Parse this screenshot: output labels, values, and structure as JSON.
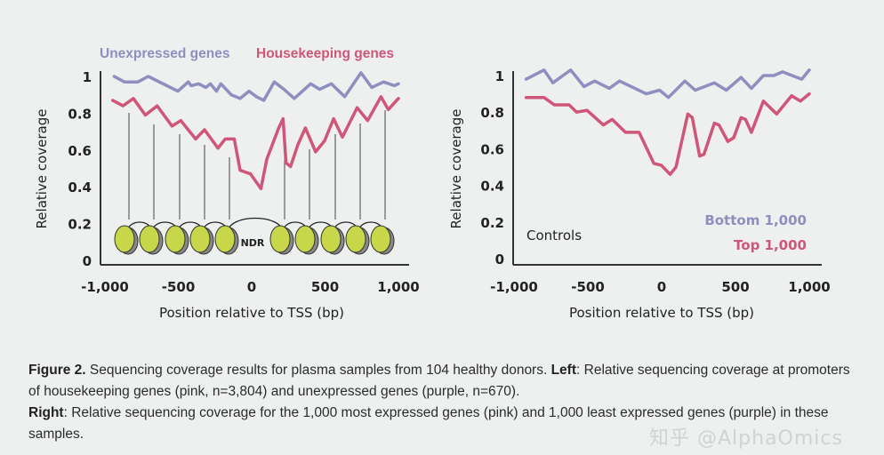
{
  "chart_data": [
    {
      "type": "line",
      "panel": "left",
      "xlabel": "Position relative to TSS (bp)",
      "ylabel": "Relative coverage",
      "xlim": [
        -1000,
        1000
      ],
      "ylim": [
        0,
        1
      ],
      "xticks": [
        "-1,000",
        "-500",
        "0",
        "500",
        "1,000"
      ],
      "xtick_values": [
        -1000,
        -500,
        0,
        500,
        1000
      ],
      "yticks": [
        "0",
        "0.2",
        "0.4",
        "0.6",
        "0.8",
        "1"
      ],
      "ytick_values": [
        0,
        0.2,
        0.4,
        0.6,
        0.8,
        1
      ],
      "grid": false,
      "legend_placement": "top",
      "annotation": "NDR",
      "nucleosome_color": "#c8d64a",
      "series": [
        {
          "name": "Unexpressed genes",
          "color": "#8e8fbf",
          "x": [
            -937,
            -867,
            -776,
            -705,
            -503,
            -432,
            -412,
            -362,
            -312,
            -281,
            -240,
            -210,
            -139,
            -79,
            -18,
            32,
            83,
            154,
            220,
            290,
            402,
            463,
            543,
            634,
            745,
            818,
            899,
            972,
            1000
          ],
          "y": [
            1.0,
            0.97,
            0.97,
            1.0,
            0.92,
            0.97,
            0.95,
            0.96,
            0.94,
            0.96,
            0.92,
            0.96,
            0.9,
            0.88,
            0.92,
            0.89,
            0.87,
            0.97,
            0.93,
            0.88,
            0.96,
            0.93,
            0.96,
            0.89,
            1.02,
            0.94,
            0.97,
            0.95,
            0.96
          ]
        },
        {
          "name": "Housekeeping genes",
          "color": "#d0557a",
          "x": [
            -947,
            -877,
            -806,
            -725,
            -644,
            -543,
            -483,
            -382,
            -321,
            -230,
            -180,
            -119,
            -79,
            -8,
            63,
            103,
            184,
            214,
            234,
            265,
            315,
            366,
            436,
            497,
            558,
            618,
            719,
            790,
            881,
            931,
            1000
          ],
          "y": [
            0.87,
            0.84,
            0.88,
            0.79,
            0.84,
            0.73,
            0.76,
            0.66,
            0.71,
            0.61,
            0.66,
            0.66,
            0.49,
            0.47,
            0.39,
            0.55,
            0.72,
            0.77,
            0.53,
            0.51,
            0.63,
            0.72,
            0.59,
            0.65,
            0.77,
            0.67,
            0.83,
            0.76,
            0.89,
            0.82,
            0.88
          ]
        }
      ]
    },
    {
      "type": "line",
      "panel": "right",
      "xlabel": "Position relative to TSS (bp)",
      "ylabel": "Relative coverage",
      "xlim": [
        -1000,
        1000
      ],
      "ylim": [
        0,
        1
      ],
      "xticks": [
        "-1,000",
        "-500",
        "0",
        "500",
        "1,000"
      ],
      "xtick_values": [
        -1000,
        -500,
        0,
        500,
        1000
      ],
      "yticks": [
        "0",
        "0.2",
        "0.4",
        "0.6",
        "0.8",
        "1"
      ],
      "ytick_values": [
        0,
        0.2,
        0.4,
        0.6,
        0.8,
        1
      ],
      "grid": false,
      "legend_placement": "bottom-right",
      "annotation": "Controls",
      "series": [
        {
          "name": "Bottom 1,000",
          "color": "#8e8fbf",
          "x": [
            -918,
            -797,
            -737,
            -616,
            -526,
            -454,
            -355,
            -285,
            -104,
            -14,
            46,
            157,
            227,
            357,
            438,
            538,
            608,
            689,
            759,
            819,
            949,
            1000
          ],
          "y": [
            0.98,
            1.03,
            0.96,
            1.03,
            0.94,
            0.97,
            0.93,
            0.97,
            0.9,
            0.92,
            0.88,
            0.97,
            0.92,
            0.96,
            0.92,
            0.99,
            0.93,
            1.0,
            1.0,
            1.02,
            0.98,
            1.03
          ]
        },
        {
          "name": "Top 1,000",
          "color": "#d0557a",
          "x": [
            -918,
            -797,
            -727,
            -627,
            -576,
            -506,
            -395,
            -335,
            -245,
            -153,
            -53,
            -3,
            57,
            97,
            177,
            207,
            257,
            287,
            357,
            388,
            448,
            488,
            538,
            568,
            608,
            689,
            779,
            880,
            940,
            1000
          ],
          "y": [
            0.88,
            0.88,
            0.84,
            0.84,
            0.8,
            0.81,
            0.73,
            0.76,
            0.69,
            0.69,
            0.52,
            0.51,
            0.46,
            0.5,
            0.79,
            0.77,
            0.56,
            0.57,
            0.74,
            0.73,
            0.64,
            0.66,
            0.77,
            0.76,
            0.69,
            0.86,
            0.79,
            0.89,
            0.86,
            0.9
          ]
        }
      ]
    }
  ],
  "caption": {
    "figure_label": "Figure 2.",
    "text1": " Sequencing coverage results for plasma samples from 104 healthy donors. ",
    "left_label": "Left",
    "text2": ": Relative sequencing coverage at promoters of housekeeping genes (pink, n=3,804) and unexpressed genes (purple, n=670).",
    "right_label": "Right",
    "text3": ": Relative sequencing coverage for the 1,000 most expressed genes (pink) and 1,000 least expressed genes (purple) in these samples."
  },
  "watermark": "知乎 @AlphaOmics"
}
